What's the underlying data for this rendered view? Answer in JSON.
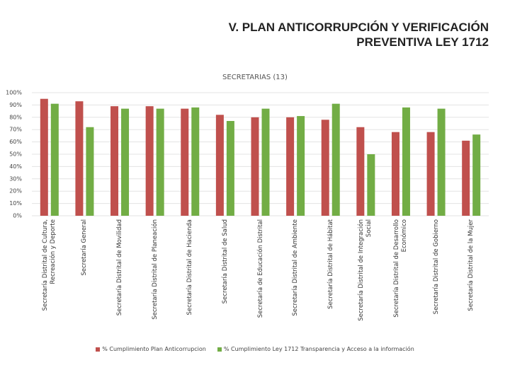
{
  "slide_title": "V. PLAN ANTICORRUPCIÓN Y VERIFICACIÓN PREVENTIVA LEY 1712",
  "chart_data": {
    "type": "bar",
    "title": "SECRETARIAS (13)",
    "categories": [
      "Secretaría Distrital de Cultura, Recreación y Deporte",
      "Secretaría General",
      "Secretaría Distrital de Movilidad",
      "Secretaría Distrital de Planeación",
      "Secretaría Distrital de Hacienda",
      "Secretaría Distrital de Salud",
      "Secretaría de Educación Distrital",
      "Secretaría Distrital de Ambiente",
      "Secretaría Distrital de Hábitat",
      "Secretaría Distrital de Integración Social",
      "Secretaría Distrital de Desarrollo Económico",
      "Secretaría Distrital de Gobierno",
      "Secretaría Distrital de la Mujer"
    ],
    "series": [
      {
        "name": "% Cumplimiento Plan Anticorrupcion",
        "color": "#c0504d",
        "values": [
          95,
          93,
          89,
          89,
          87,
          82,
          80,
          80,
          78,
          72,
          68,
          68,
          61
        ]
      },
      {
        "name": "% Cumplimiento Ley 1712 Transparencia y Acceso a la información",
        "color": "#72ad45",
        "values": [
          91,
          72,
          87,
          87,
          88,
          77,
          87,
          81,
          91,
          50,
          88,
          87,
          66
        ]
      }
    ],
    "ylim": [
      0,
      100
    ],
    "yticks": [
      {
        "value": 0,
        "label": "0%"
      },
      {
        "value": 10,
        "label": "10%"
      },
      {
        "value": 20,
        "label": "20%"
      },
      {
        "value": 30,
        "label": "30%"
      },
      {
        "value": 40,
        "label": "40%"
      },
      {
        "value": 50,
        "label": "50%"
      },
      {
        "value": 60,
        "label": "60%"
      },
      {
        "value": 70,
        "label": "70%"
      },
      {
        "value": 80,
        "label": "80%"
      },
      {
        "value": 90,
        "label": "90%"
      },
      {
        "value": 100,
        "label": "100%"
      }
    ],
    "grid": true
  }
}
